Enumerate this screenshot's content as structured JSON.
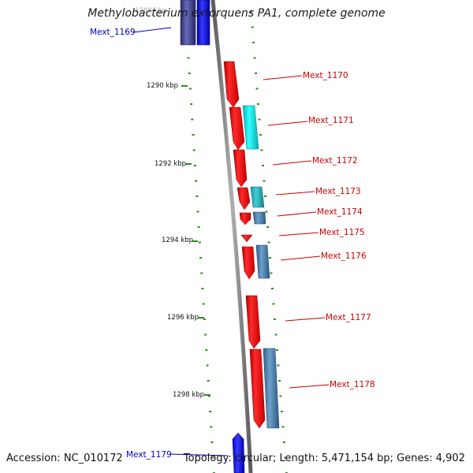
{
  "title": "Methylobacterium extorquens PA1, complete genome",
  "accession": "Accession: NC_010172",
  "summary": "Topology: circular; Length: 5,471,154 bp; Genes: 4,902",
  "colors": {
    "backbone": "#808080",
    "tick": "#2e8b22",
    "minus_strand_gene": "#ff0000",
    "cyan_gene": "#00e5e5",
    "steel_gene": "#4682b4",
    "blue_gene": "#0000ff",
    "navy_gene": "#3c3c96",
    "label_red": "#cc0000",
    "label_blue": "#0000cc"
  },
  "ticks": [
    {
      "label": "1288 kbp"
    },
    {
      "label": "1290 kbp"
    },
    {
      "label": "1292 kbp"
    },
    {
      "label": "1294 kbp"
    },
    {
      "label": "1296 kbp"
    },
    {
      "label": "1298 kbp"
    }
  ],
  "genes": [
    {
      "label": "Mext_1169",
      "color": "blue"
    },
    {
      "label": "Mext_1170",
      "color": "red"
    },
    {
      "label": "Mext_1171",
      "color": "red"
    },
    {
      "label": "Mext_1172",
      "color": "red"
    },
    {
      "label": "Mext_1173",
      "color": "red"
    },
    {
      "label": "Mext_1174",
      "color": "red"
    },
    {
      "label": "Mext_1175",
      "color": "red"
    },
    {
      "label": "Mext_1176",
      "color": "red"
    },
    {
      "label": "Mext_1177",
      "color": "red"
    },
    {
      "label": "Mext_1178",
      "color": "red"
    },
    {
      "label": "Mext_1179",
      "color": "blue"
    }
  ]
}
